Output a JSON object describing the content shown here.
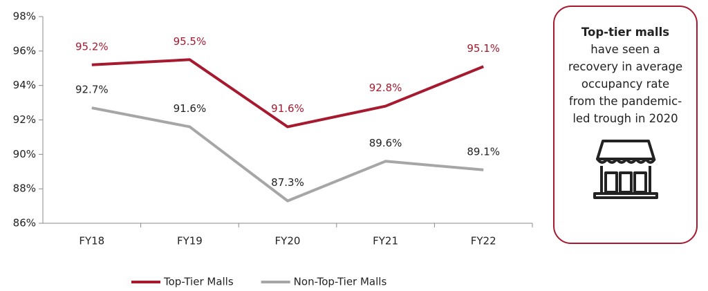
{
  "chart_data": {
    "type": "line",
    "categories": [
      "FY18",
      "FY19",
      "FY20",
      "FY21",
      "FY22"
    ],
    "series": [
      {
        "name": "Top-Tier Malls",
        "color": "#a6192e",
        "values": [
          95.2,
          95.5,
          91.6,
          92.8,
          95.1
        ],
        "value_labels": [
          "95.2%",
          "95.5%",
          "91.6%",
          "92.8%",
          "95.1%"
        ]
      },
      {
        "name": "Non-Top-Tier Malls",
        "color": "#a6a6a6",
        "values": [
          92.7,
          91.6,
          87.3,
          89.6,
          89.1
        ],
        "value_labels": [
          "92.7%",
          "91.6%",
          "87.3%",
          "89.6%",
          "89.1%"
        ]
      }
    ],
    "ylim": [
      86,
      98
    ],
    "yticks": [
      {
        "value": 86,
        "label": "86%"
      },
      {
        "value": 88,
        "label": "88%"
      },
      {
        "value": 90,
        "label": "90%"
      },
      {
        "value": 92,
        "label": "92%"
      },
      {
        "value": 94,
        "label": "94%"
      },
      {
        "value": 96,
        "label": "96%"
      },
      {
        "value": 98,
        "label": "98%"
      }
    ],
    "grid": false,
    "legend": "bottom",
    "annotation": {
      "title": "Top-tier malls",
      "text": "have seen a recovery in average occupancy rate from the pandemic-led trough in 2020"
    }
  }
}
